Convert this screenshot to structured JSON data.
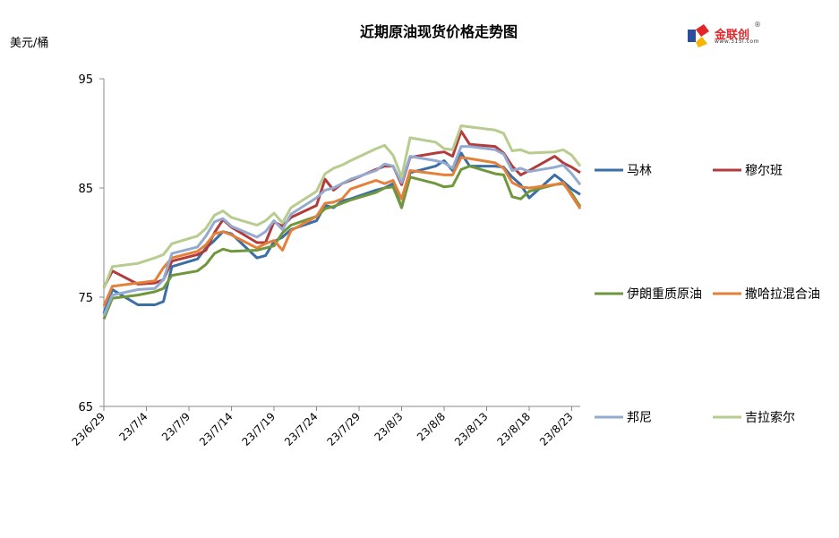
{
  "chart_data": {
    "type": "line",
    "title": "近期原油现货价格走势图",
    "ylabel": "美元/桶",
    "xlabel": "",
    "ylim": [
      65,
      95
    ],
    "yticks": [
      65,
      75,
      85,
      95
    ],
    "xlim": [
      "23/6/29",
      "23/8/24"
    ],
    "xticks": [
      "23/6/29",
      "23/7/4",
      "23/7/9",
      "23/7/14",
      "23/7/19",
      "23/7/24",
      "23/7/29",
      "23/8/3",
      "23/8/8",
      "23/8/13",
      "23/8/18",
      "23/8/23"
    ],
    "grid": false,
    "legend": "right",
    "x": [
      "23/6/29",
      "23/6/30",
      "23/7/3",
      "23/7/5",
      "23/7/6",
      "23/7/7",
      "23/7/10",
      "23/7/11",
      "23/7/12",
      "23/7/13",
      "23/7/14",
      "23/7/17",
      "23/7/18",
      "23/7/19",
      "23/7/20",
      "23/7/21",
      "23/7/24",
      "23/7/25",
      "23/7/26",
      "23/7/27",
      "23/7/28",
      "23/7/31",
      "23/8/1",
      "23/8/2",
      "23/8/3",
      "23/8/4",
      "23/8/7",
      "23/8/8",
      "23/8/9",
      "23/8/10",
      "23/8/11",
      "23/8/14",
      "23/8/15",
      "23/8/16",
      "23/8/17",
      "23/8/18",
      "23/8/21",
      "23/8/22",
      "23/8/23",
      "23/8/24"
    ],
    "series": [
      {
        "name": "马林",
        "color": "#3a6ea5",
        "values": [
          73.5,
          75.7,
          74.3,
          74.3,
          74.6,
          77.8,
          78.5,
          79.5,
          80.2,
          81.0,
          80.8,
          78.6,
          78.8,
          80.1,
          80.5,
          81.2,
          82.0,
          83.4,
          83.2,
          83.8,
          84.0,
          84.8,
          85.0,
          85.4,
          83.2,
          86.4,
          87.0,
          87.5,
          86.6,
          88.2,
          87.0,
          87.0,
          86.9,
          86.0,
          85.3,
          84.1,
          86.2,
          85.6,
          84.9,
          84.4
        ]
      },
      {
        "name": "穆尔班",
        "color": "#b33b3b",
        "values": [
          75.9,
          77.4,
          76.2,
          76.3,
          76.6,
          78.3,
          78.9,
          79.3,
          80.9,
          82.1,
          81.4,
          80.0,
          80.0,
          81.9,
          81.5,
          82.3,
          83.4,
          85.8,
          84.8,
          85.4,
          85.7,
          86.7,
          87.0,
          87.0,
          85.3,
          87.8,
          88.2,
          88.3,
          87.9,
          90.2,
          89.0,
          88.8,
          88.2,
          87.0,
          86.2,
          86.6,
          87.9,
          87.3,
          86.9,
          86.4
        ]
      },
      {
        "name": "伊朗重质原油",
        "color": "#70973c",
        "values": [
          73.0,
          74.9,
          75.2,
          75.5,
          75.8,
          77.0,
          77.4,
          78.0,
          79.0,
          79.4,
          79.2,
          79.3,
          79.5,
          79.7,
          80.9,
          81.6,
          82.4,
          83.1,
          83.3,
          83.6,
          83.9,
          84.6,
          85.0,
          85.1,
          83.2,
          86.0,
          85.4,
          85.1,
          85.2,
          86.7,
          87.0,
          86.3,
          86.2,
          84.2,
          84.0,
          84.7,
          85.3,
          85.4,
          84.5,
          83.3
        ]
      },
      {
        "name": "撒哈拉混合油",
        "color": "#e3813a",
        "values": [
          74.2,
          76.0,
          76.3,
          76.5,
          77.7,
          78.6,
          79.2,
          79.8,
          80.8,
          81.0,
          80.7,
          79.5,
          79.9,
          80.2,
          79.3,
          81.1,
          82.4,
          83.6,
          83.7,
          84.0,
          84.9,
          85.7,
          85.4,
          85.7,
          84.0,
          86.6,
          86.3,
          86.2,
          86.2,
          87.8,
          87.7,
          87.3,
          86.8,
          85.5,
          85.1,
          85.0,
          85.3,
          85.5,
          84.3,
          83.1
        ]
      },
      {
        "name": "邦尼",
        "color": "#93abd0",
        "values": [
          73.3,
          75.2,
          75.7,
          75.8,
          76.6,
          79.0,
          79.6,
          80.6,
          81.9,
          82.2,
          81.5,
          80.5,
          81.0,
          82.0,
          81.2,
          82.6,
          84.1,
          84.8,
          85.0,
          85.4,
          85.8,
          86.6,
          87.2,
          87.0,
          85.5,
          87.9,
          87.5,
          87.3,
          86.8,
          88.8,
          88.8,
          88.5,
          88.1,
          86.6,
          86.8,
          86.5,
          86.9,
          87.1,
          86.3,
          85.3
        ]
      },
      {
        "name": "吉拉索尔",
        "color": "#b7cc8e",
        "values": [
          75.8,
          77.8,
          78.1,
          78.6,
          78.9,
          79.9,
          80.6,
          81.3,
          82.5,
          82.9,
          82.3,
          81.6,
          82.0,
          82.7,
          81.8,
          83.2,
          84.7,
          86.3,
          86.8,
          87.1,
          87.5,
          88.6,
          88.9,
          88.0,
          86.0,
          89.6,
          89.2,
          88.6,
          88.5,
          90.7,
          90.6,
          90.3,
          90.0,
          88.4,
          88.5,
          88.2,
          88.3,
          88.5,
          88.0,
          87.0
        ]
      }
    ]
  },
  "logo": {
    "text": "金联创",
    "sub": "www.315i.com",
    "registered": "®"
  }
}
